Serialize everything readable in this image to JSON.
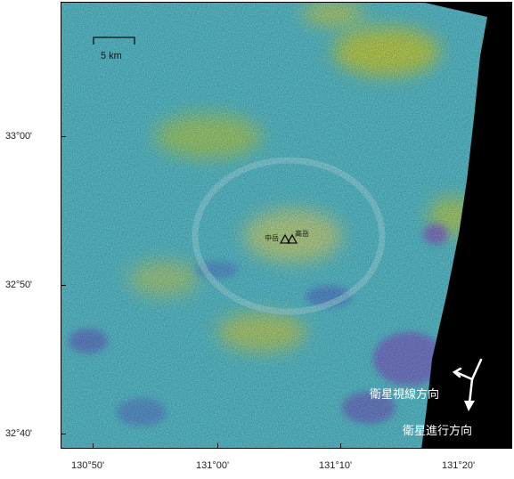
{
  "latitude_labels": [
    "33°00'",
    "32°50'",
    "32°40'"
  ],
  "longitude_labels": [
    "130°50'",
    "131°00'",
    "131°10'",
    "131°20'"
  ],
  "scale_bar": {
    "label": "5 km"
  },
  "peaks": {
    "naka_dake": "中岳",
    "taka_dake": "高岳"
  },
  "annotations": {
    "look_direction": "衛星視線方向",
    "flight_direction": "衛星進行方向"
  },
  "colors": {
    "base": "#5ec8d6",
    "high": "#e0dc2e",
    "low": "#8a5ad0",
    "nodata": "#000000",
    "arrow": "#ffffff"
  }
}
